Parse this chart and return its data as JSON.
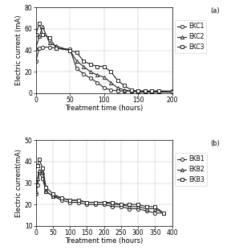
{
  "panel_a": {
    "label": "(a)",
    "xlabel": "Treatment time (hours)",
    "ylabel": "Electric current (mA)",
    "xlim": [
      0,
      200
    ],
    "ylim": [
      0,
      80
    ],
    "xticks": [
      0,
      50,
      100,
      150,
      200
    ],
    "yticks": [
      0,
      20,
      40,
      60,
      80
    ],
    "series": [
      {
        "name": "EKC1",
        "marker": "o",
        "x": [
          0,
          5,
          10,
          20,
          30,
          50,
          60,
          70,
          80,
          90,
          100,
          110,
          120,
          130,
          140,
          150,
          160,
          170,
          180,
          200
        ],
        "y": [
          30,
          42,
          43,
          43,
          42,
          41,
          23,
          18,
          14,
          10,
          5,
          3,
          2,
          2,
          2,
          2,
          2,
          2,
          2,
          2
        ]
      },
      {
        "name": "EKC2",
        "marker": "^",
        "x": [
          0,
          5,
          10,
          20,
          30,
          50,
          60,
          70,
          80,
          90,
          100,
          110,
          120,
          130,
          140,
          150,
          160,
          170,
          180,
          200
        ],
        "y": [
          42,
          53,
          62,
          47,
          44,
          40,
          30,
          25,
          20,
          17,
          15,
          10,
          5,
          3,
          2,
          1,
          1,
          1,
          1,
          1
        ]
      },
      {
        "name": "EKC3",
        "marker": "s",
        "x": [
          0,
          5,
          10,
          20,
          30,
          50,
          60,
          70,
          80,
          90,
          100,
          110,
          120,
          130,
          140,
          150,
          160,
          170,
          180,
          200
        ],
        "y": [
          55,
          65,
          55,
          52,
          42,
          40,
          38,
          30,
          27,
          25,
          25,
          20,
          12,
          7,
          3,
          2,
          2,
          2,
          2,
          1
        ]
      }
    ]
  },
  "panel_b": {
    "label": "(b)",
    "xlabel": "Treatment time (hours)",
    "ylabel": "Electric current(mA)",
    "xlim": [
      0,
      400
    ],
    "ylim": [
      10,
      50
    ],
    "xticks": [
      0,
      50,
      100,
      150,
      200,
      250,
      300,
      350,
      400
    ],
    "yticks": [
      10,
      20,
      30,
      40,
      50
    ],
    "series": [
      {
        "name": "EKB1",
        "marker": "o",
        "x": [
          0,
          5,
          10,
          20,
          30,
          50,
          75,
          100,
          125,
          150,
          175,
          200,
          225,
          250,
          275,
          300,
          325,
          350,
          375
        ],
        "y": [
          25,
          29,
          35,
          32,
          26,
          24,
          22,
          21,
          21,
          20,
          20,
          20,
          19,
          19,
          18,
          18,
          17,
          16,
          16
        ]
      },
      {
        "name": "EKB2",
        "marker": "^",
        "x": [
          0,
          5,
          10,
          20,
          30,
          50,
          75,
          100,
          125,
          150,
          175,
          200,
          225,
          250,
          275,
          300,
          325,
          350,
          375
        ],
        "y": [
          26,
          32,
          36,
          35,
          26,
          24,
          23,
          22,
          22,
          21,
          21,
          21,
          20,
          20,
          19,
          19,
          18,
          18,
          16
        ]
      },
      {
        "name": "EKB3",
        "marker": "s",
        "x": [
          0,
          5,
          10,
          20,
          30,
          50,
          75,
          100,
          125,
          150,
          175,
          200,
          225,
          250,
          275,
          300,
          325,
          350,
          375
        ],
        "y": [
          38,
          38,
          41,
          37,
          28,
          25,
          23,
          22,
          22,
          21,
          21,
          21,
          21,
          20,
          20,
          20,
          19,
          19,
          16
        ]
      }
    ]
  },
  "line_color": "#222222",
  "marker_size": 3,
  "line_width": 0.8,
  "font_size": 6.0,
  "label_font_size": 6.0,
  "legend_font_size": 5.5,
  "tick_font_size": 5.5
}
